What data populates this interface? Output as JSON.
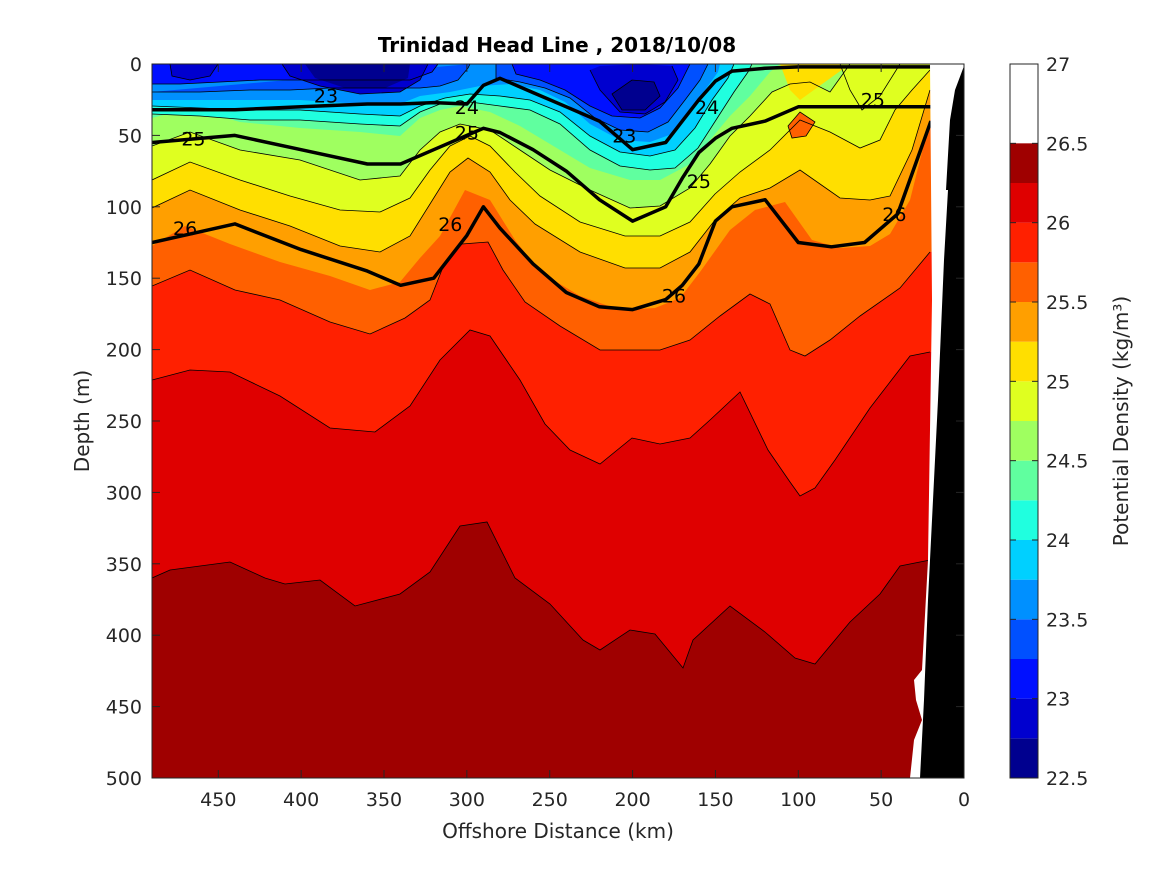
{
  "chart_data": {
    "type": "heatmap",
    "subtype": "filled-contour",
    "title": "Trinidad Head Line , 2018/10/08",
    "xlabel": "Offshore Distance (km)",
    "ylabel": "Depth (m)",
    "colorbar_label": "Potential Density (kg/m³)",
    "x_direction": "reversed",
    "y_direction": "reversed",
    "xlim": [
      0,
      490
    ],
    "ylim": [
      0,
      500
    ],
    "x_ticks": [
      450,
      400,
      350,
      300,
      250,
      200,
      150,
      100,
      50,
      0
    ],
    "y_ticks": [
      0,
      50,
      100,
      150,
      200,
      250,
      300,
      350,
      400,
      450,
      500
    ],
    "colorbar": {
      "range": [
        22.5,
        27
      ],
      "step": 0.25,
      "tick_values": [
        22.5,
        23,
        23.5,
        24,
        24.5,
        25,
        25.5,
        26,
        26.5,
        27
      ],
      "tick_labels": [
        "22.5",
        "23",
        "23.5",
        "24",
        "24.5",
        "25",
        "25.5",
        "26",
        "26.5",
        "27"
      ],
      "colors": [
        "#00008f",
        "#0000cf",
        "#0010ff",
        "#0050ff",
        "#0090ff",
        "#00d0ff",
        "#20ffdf",
        "#60ff9f",
        "#9fff60",
        "#dfff20",
        "#ffdf00",
        "#ff9f00",
        "#ff6000",
        "#ff2000",
        "#df0000",
        "#9f0000"
      ]
    },
    "isopycnal_depths": {
      "x": [
        490,
        440,
        400,
        360,
        340,
        320,
        300,
        290,
        280,
        260,
        240,
        220,
        200,
        180,
        170,
        160,
        150,
        140,
        120,
        100,
        80,
        60,
        40,
        20
      ],
      "sigma_24": [
        32,
        32,
        30,
        28,
        28,
        27,
        28,
        15,
        10,
        20,
        30,
        40,
        60,
        55,
        40,
        25,
        12,
        5,
        3,
        2,
        2,
        2,
        2,
        2
      ],
      "sigma_25": [
        55,
        50,
        60,
        70,
        70,
        60,
        50,
        45,
        48,
        60,
        75,
        95,
        110,
        100,
        80,
        62,
        52,
        45,
        40,
        30,
        30,
        30,
        30,
        30
      ],
      "sigma_26": [
        125,
        112,
        130,
        145,
        155,
        150,
        120,
        100,
        115,
        140,
        160,
        170,
        172,
        165,
        155,
        140,
        110,
        100,
        95,
        125,
        128,
        125,
        105,
        40
      ]
    },
    "contour_labels": [
      {
        "text": "23",
        "x": 385,
        "y": 22
      },
      {
        "text": "24",
        "x": 300,
        "y": 30
      },
      {
        "text": "25",
        "x": 465,
        "y": 52
      },
      {
        "text": "25",
        "x": 300,
        "y": 48
      },
      {
        "text": "23",
        "x": 205,
        "y": 50
      },
      {
        "text": "24",
        "x": 155,
        "y": 30
      },
      {
        "text": "25",
        "x": 55,
        "y": 25
      },
      {
        "text": "25",
        "x": 160,
        "y": 82
      },
      {
        "text": "26",
        "x": 470,
        "y": 115
      },
      {
        "text": "26",
        "x": 310,
        "y": 112
      },
      {
        "text": "26",
        "x": 175,
        "y": 162
      },
      {
        "text": "26",
        "x": 42,
        "y": 105
      }
    ]
  }
}
